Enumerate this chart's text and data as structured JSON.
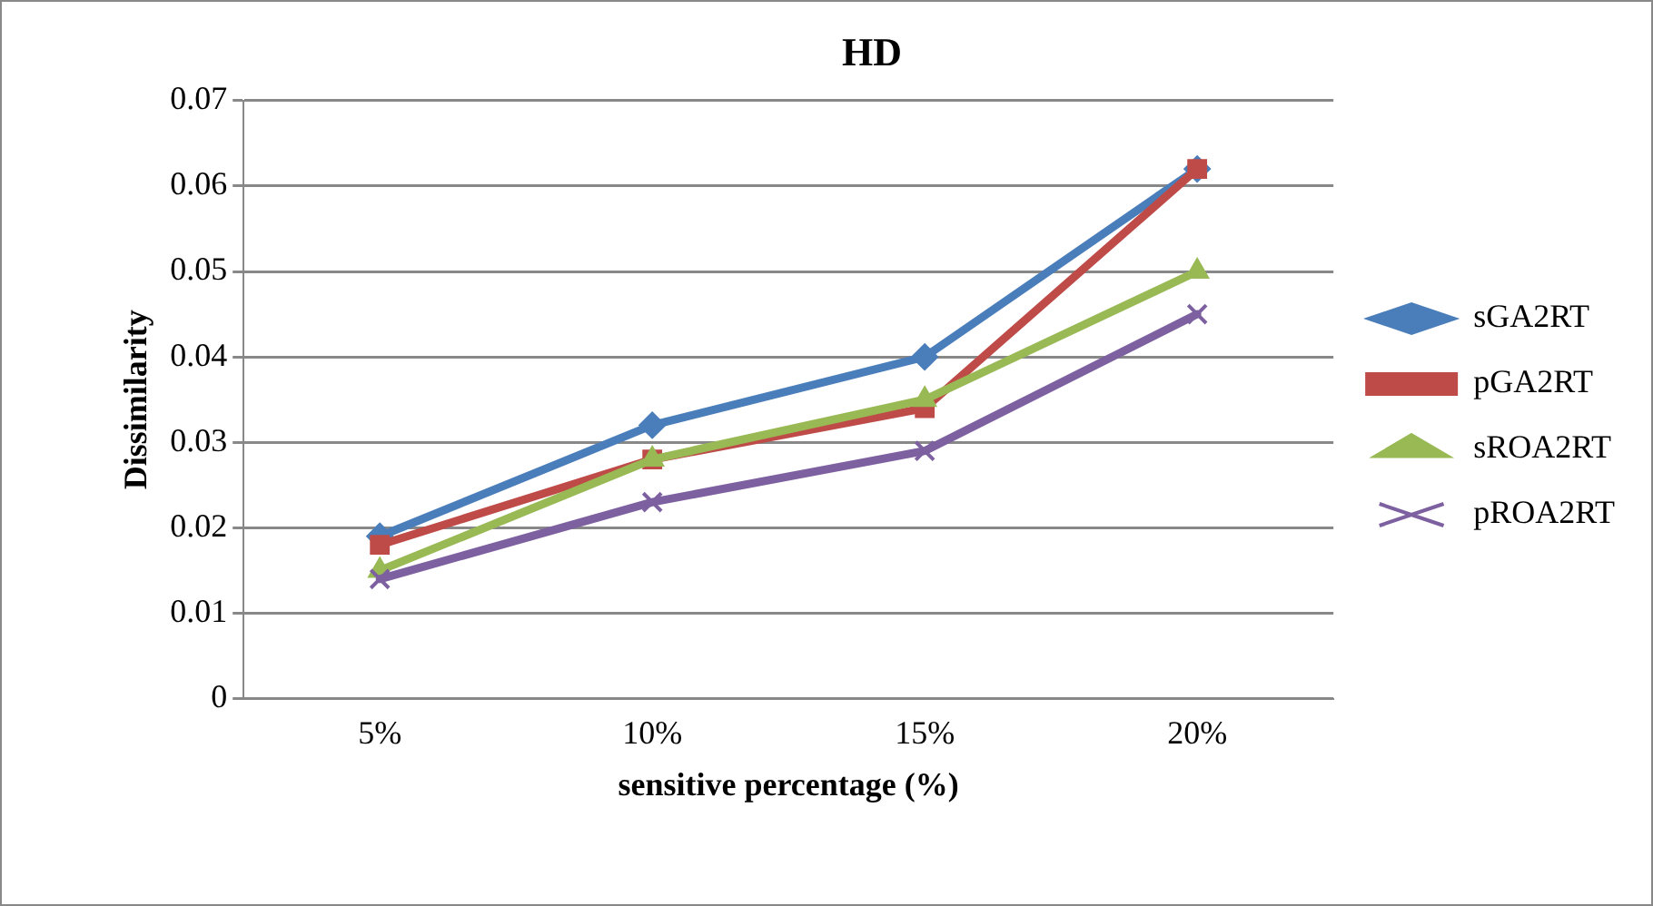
{
  "chart_data": {
    "type": "line",
    "title": "HD",
    "xlabel": "sensitive percentage (%)",
    "ylabel": "Dissimilarity",
    "categories": [
      "5%",
      "10%",
      "15%",
      "20%"
    ],
    "series": [
      {
        "name": "sGA2RT",
        "color": "#4a7ebb",
        "marker": "diamond",
        "values": [
          0.019,
          0.032,
          0.04,
          0.062
        ]
      },
      {
        "name": "pGA2RT",
        "color": "#be4b48",
        "marker": "square",
        "values": [
          0.018,
          0.028,
          0.034,
          0.062
        ]
      },
      {
        "name": "sROA2RT",
        "color": "#98b954",
        "marker": "triangle",
        "values": [
          0.015,
          0.028,
          0.035,
          0.05
        ]
      },
      {
        "name": "pROA2RT",
        "color": "#7d60a0",
        "marker": "cross",
        "values": [
          0.014,
          0.023,
          0.029,
          0.045
        ]
      }
    ],
    "ylim": [
      0,
      0.07
    ],
    "yticks": [
      0,
      0.01,
      0.02,
      0.03,
      0.04,
      0.05,
      0.06,
      0.07
    ],
    "grid": "y",
    "legend": "right",
    "line_style": "solid"
  }
}
